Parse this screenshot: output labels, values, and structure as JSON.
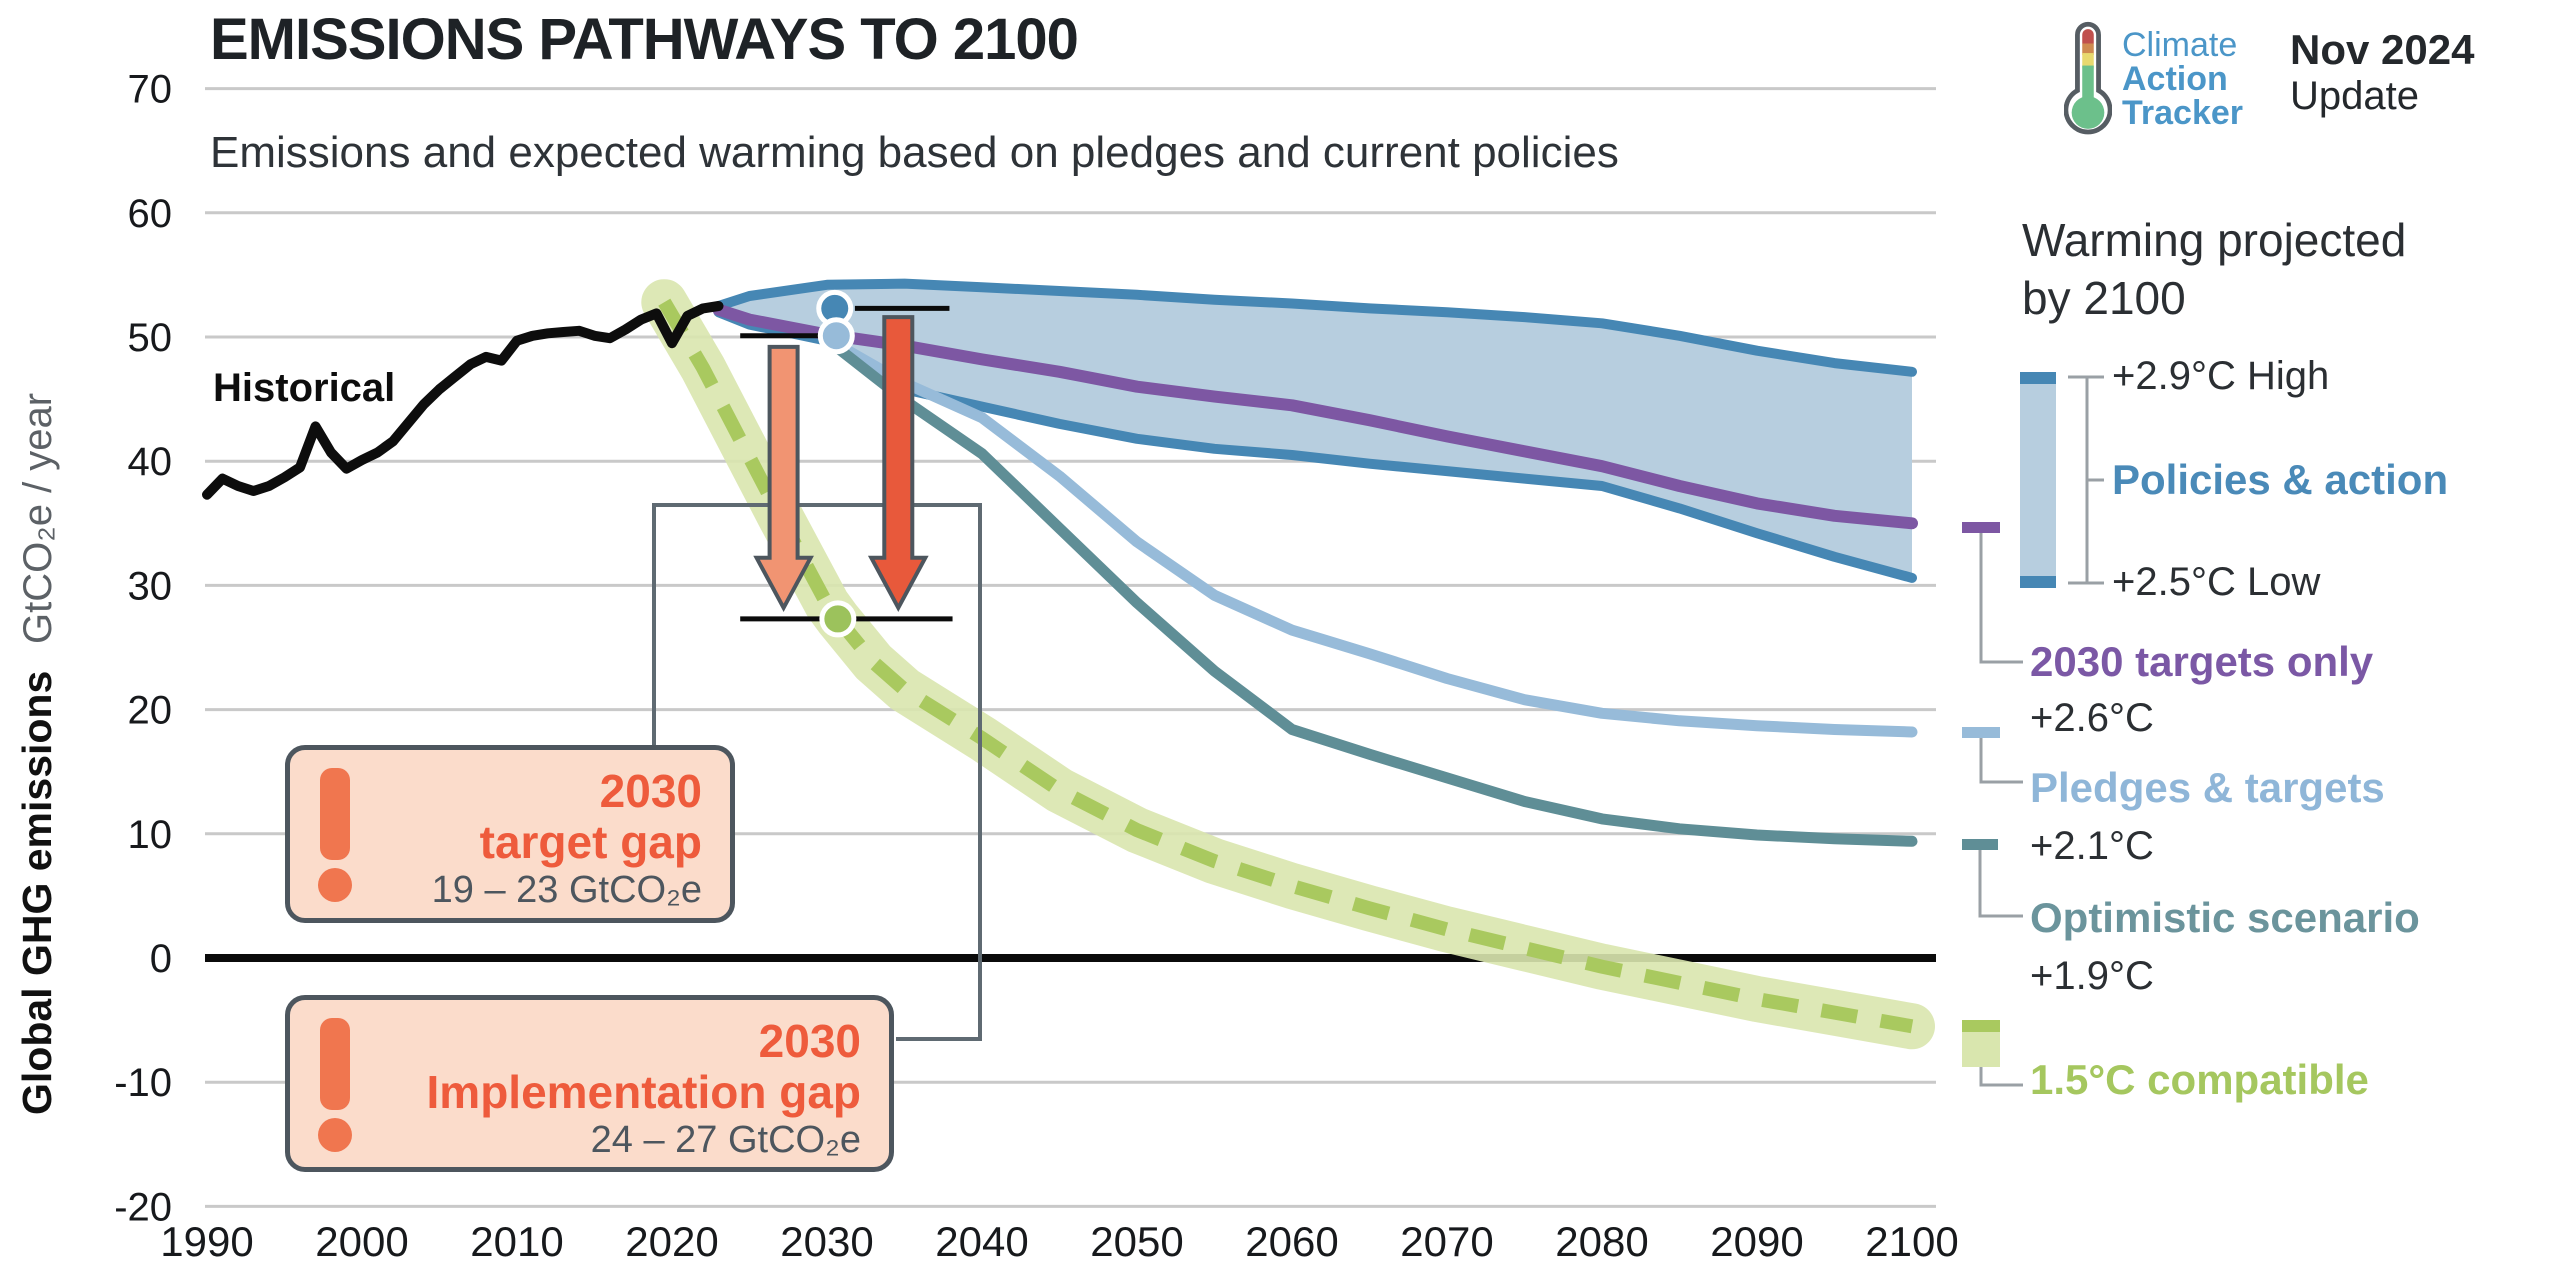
{
  "header": {
    "title": "EMISSIONS PATHWAYS TO 2100",
    "subtitle": "Emissions and expected warming based on pledges and current policies"
  },
  "logo": {
    "name_line1": "Climate",
    "name_line2": "Action",
    "name_line3": "Tracker",
    "brand_color": "#4b96c8",
    "update_line1": "Nov 2024",
    "update_line2": "Update"
  },
  "axis": {
    "y_label_bold": "Global GHG emissions",
    "y_label_unit": "GtCO₂e / year",
    "y_ticks": [
      70,
      60,
      50,
      40,
      30,
      20,
      10,
      0,
      -10,
      -20
    ],
    "x_ticks": [
      1990,
      2000,
      2010,
      2020,
      2030,
      2040,
      2050,
      2060,
      2070,
      2080,
      2090,
      2100
    ]
  },
  "legend": {
    "title_line1": "Warming projected",
    "title_line2": "by 2100",
    "policies": {
      "high": "+2.9°C High",
      "label": "Policies & action",
      "low": "+2.5°C Low",
      "color": "#4a8ab8",
      "band_fill": "#b7cedf",
      "band_edge": "#4687b4"
    },
    "targets": {
      "label": "2030 targets only",
      "temp": "+2.6°C",
      "color": "#7b58a5"
    },
    "pledges": {
      "label": "Pledges & targets",
      "temp": "+2.1°C",
      "color": "#8fb6d8"
    },
    "optimistic": {
      "label": "Optimistic scenario",
      "temp": "+1.9°C",
      "color": "#6b949c"
    },
    "compatible": {
      "label": "1.5°C compatible",
      "color": "#a5c75f",
      "halo": "#d9e6ae"
    }
  },
  "annotations": {
    "historical_label": "Historical",
    "target_gap": {
      "line1": "2030",
      "line2": "target gap",
      "range": "19 – 23  GtCO₂e"
    },
    "implementation_gap": {
      "line1": "2030",
      "line2": "Implementation gap",
      "range": "24 – 27  GtCO₂e"
    }
  },
  "chart_data": {
    "type": "line",
    "title": "Emissions pathways to 2100",
    "xlabel": "",
    "ylabel": "Global GHG emissions GtCO₂e / year",
    "x_range": [
      1990,
      2100
    ],
    "y_range": [
      -20,
      70
    ],
    "grid": true,
    "band": {
      "id": "policies-action",
      "label": "Policies & action",
      "fill": "#b7cedf",
      "edge": "#4687b4",
      "edge_width": 10,
      "high": [
        [
          2023,
          52.5
        ],
        [
          2025,
          53.3
        ],
        [
          2030,
          54.2
        ],
        [
          2035,
          54.3
        ],
        [
          2040,
          54.0
        ],
        [
          2045,
          53.7
        ],
        [
          2050,
          53.4
        ],
        [
          2055,
          53.0
        ],
        [
          2060,
          52.7
        ],
        [
          2065,
          52.3
        ],
        [
          2070,
          52.0
        ],
        [
          2075,
          51.6
        ],
        [
          2080,
          51.1
        ],
        [
          2085,
          50.1
        ],
        [
          2090,
          48.9
        ],
        [
          2095,
          47.9
        ],
        [
          2100,
          47.2
        ]
      ],
      "low": [
        [
          2023,
          52.0
        ],
        [
          2025,
          51.0
        ],
        [
          2030,
          49.7
        ],
        [
          2035,
          45.8
        ],
        [
          2040,
          44.4
        ],
        [
          2045,
          43.0
        ],
        [
          2050,
          41.8
        ],
        [
          2055,
          41.0
        ],
        [
          2060,
          40.5
        ],
        [
          2065,
          39.8
        ],
        [
          2070,
          39.2
        ],
        [
          2075,
          38.6
        ],
        [
          2080,
          38.0
        ],
        [
          2085,
          36.2
        ],
        [
          2090,
          34.2
        ],
        [
          2095,
          32.3
        ],
        [
          2100,
          30.6
        ]
      ]
    },
    "series": [
      {
        "id": "targets-only",
        "label": "2030 targets only",
        "color": "#7d57a3",
        "width": 12,
        "points": [
          [
            2023,
            52.2
          ],
          [
            2025,
            51.4
          ],
          [
            2030,
            50.2
          ],
          [
            2035,
            49.3
          ],
          [
            2040,
            48.2
          ],
          [
            2045,
            47.2
          ],
          [
            2050,
            46.0
          ],
          [
            2055,
            45.2
          ],
          [
            2060,
            44.5
          ],
          [
            2065,
            43.3
          ],
          [
            2070,
            42.0
          ],
          [
            2075,
            40.8
          ],
          [
            2080,
            39.6
          ],
          [
            2085,
            38.0
          ],
          [
            2090,
            36.6
          ],
          [
            2095,
            35.6
          ],
          [
            2100,
            35.0
          ]
        ]
      },
      {
        "id": "pledges-targets",
        "label": "Pledges & targets",
        "color": "#97bbd9",
        "width": 11,
        "points": [
          [
            2030.5,
            49.5
          ],
          [
            2035,
            46.3
          ],
          [
            2040,
            43.5
          ],
          [
            2045,
            38.8
          ],
          [
            2050,
            33.5
          ],
          [
            2055,
            29.2
          ],
          [
            2060,
            26.4
          ],
          [
            2065,
            24.5
          ],
          [
            2070,
            22.5
          ],
          [
            2075,
            20.8
          ],
          [
            2080,
            19.7
          ],
          [
            2085,
            19.1
          ],
          [
            2090,
            18.7
          ],
          [
            2095,
            18.4
          ],
          [
            2100,
            18.2
          ]
        ]
      },
      {
        "id": "optimistic",
        "label": "Optimistic scenario",
        "color": "#5f8e96",
        "width": 11,
        "points": [
          [
            2030.5,
            49.3
          ],
          [
            2035,
            44.9
          ],
          [
            2040,
            40.6
          ],
          [
            2045,
            34.6
          ],
          [
            2050,
            28.6
          ],
          [
            2055,
            23.1
          ],
          [
            2060,
            18.4
          ],
          [
            2065,
            16.4
          ],
          [
            2070,
            14.5
          ],
          [
            2075,
            12.6
          ],
          [
            2080,
            11.2
          ],
          [
            2085,
            10.4
          ],
          [
            2090,
            9.9
          ],
          [
            2095,
            9.6
          ],
          [
            2100,
            9.4
          ]
        ]
      },
      {
        "id": "compatible-1p5",
        "label": "1.5°C compatible",
        "color": "#a9c95f",
        "width": 14,
        "dash": "36 24",
        "halo": "#d9e6ae",
        "halo_width": 46,
        "points": [
          [
            2019.5,
            52.8
          ],
          [
            2022,
            47.5
          ],
          [
            2025,
            40.3
          ],
          [
            2027,
            35.5
          ],
          [
            2030,
            28.5
          ],
          [
            2030.7,
            27.3
          ],
          [
            2033,
            23.8
          ],
          [
            2035,
            21.6
          ],
          [
            2040,
            17.7
          ],
          [
            2045,
            13.5
          ],
          [
            2050,
            10.3
          ],
          [
            2055,
            7.8
          ],
          [
            2060,
            5.8
          ],
          [
            2065,
            4.0
          ],
          [
            2070,
            2.3
          ],
          [
            2075,
            0.8
          ],
          [
            2080,
            -0.7
          ],
          [
            2085,
            -2.0
          ],
          [
            2090,
            -3.3
          ],
          [
            2095,
            -4.4
          ],
          [
            2100,
            -5.5
          ]
        ]
      },
      {
        "id": "historical",
        "label": "Historical",
        "color": "#0d0d0d",
        "width": 10,
        "points": [
          [
            1990,
            37.3
          ],
          [
            1991,
            38.6
          ],
          [
            1992,
            38.0
          ],
          [
            1993,
            37.6
          ],
          [
            1994,
            38.0
          ],
          [
            1995,
            38.7
          ],
          [
            1996,
            39.5
          ],
          [
            1997,
            42.8
          ],
          [
            1998,
            40.7
          ],
          [
            1999,
            39.4
          ],
          [
            2000,
            40.1
          ],
          [
            2001,
            40.7
          ],
          [
            2002,
            41.6
          ],
          [
            2003,
            43.1
          ],
          [
            2004,
            44.6
          ],
          [
            2005,
            45.8
          ],
          [
            2006,
            46.8
          ],
          [
            2007,
            47.8
          ],
          [
            2008,
            48.4
          ],
          [
            2009,
            48.1
          ],
          [
            2010,
            49.7
          ],
          [
            2011,
            50.1
          ],
          [
            2012,
            50.3
          ],
          [
            2013,
            50.4
          ],
          [
            2014,
            50.5
          ],
          [
            2015,
            50.1
          ],
          [
            2016,
            49.9
          ],
          [
            2017,
            50.6
          ],
          [
            2018,
            51.4
          ],
          [
            2019,
            51.9
          ],
          [
            2020,
            49.5
          ],
          [
            2021,
            51.7
          ],
          [
            2022,
            52.3
          ],
          [
            2023,
            52.5
          ]
        ]
      }
    ],
    "markers": {
      "dots": [
        {
          "id": "policies-2030-dot",
          "year": 2030.5,
          "value": 52.3,
          "color": "#4687b4"
        },
        {
          "id": "pledges-2030-dot",
          "year": 2030.6,
          "value": 50.1,
          "color": "#97bbd9"
        },
        {
          "id": "compatible-2030-dot",
          "year": 2030.7,
          "value": 27.3,
          "color": "#9cc25c"
        }
      ],
      "ref_segments": [
        {
          "from_year": 2024.4,
          "to_year": 2030.6,
          "value": 50.1
        },
        {
          "from_year": 2031.8,
          "to_year": 2037.9,
          "value": 52.3
        },
        {
          "from_year": 2024.4,
          "to_year": 2038.1,
          "value": 27.3
        }
      ],
      "gap_arrows": [
        {
          "id": "target-gap-arrow",
          "year": 2027.2,
          "from": 49.2,
          "to": 28.2,
          "fill": "#f19472"
        },
        {
          "id": "implementation-gap-arrow",
          "year": 2034.6,
          "from": 51.6,
          "to": 28.2,
          "fill": "#e8593b"
        }
      ]
    }
  }
}
